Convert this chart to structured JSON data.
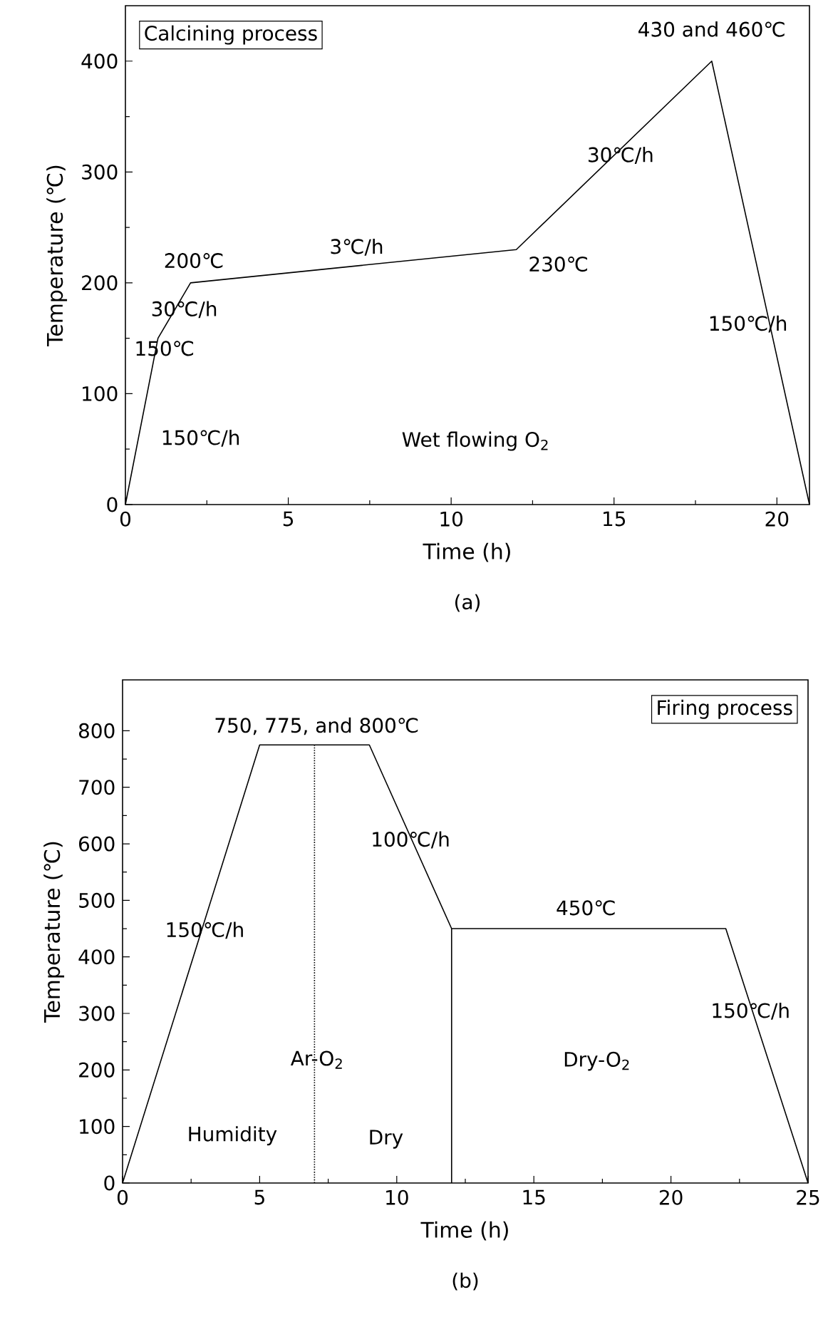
{
  "chart_data": [
    {
      "type": "line",
      "title": "Calcining process",
      "subtitle": "(a)",
      "xlabel": "Time (h)",
      "ylabel": "Temperature (℃)",
      "xlim": [
        0,
        21
      ],
      "ylim": [
        0,
        450
      ],
      "xticks": [
        0,
        5,
        10,
        15,
        20
      ],
      "yticks": [
        0,
        100,
        200,
        300,
        400
      ],
      "series": [
        {
          "color": "#000000",
          "x": [
            0,
            1,
            2,
            12,
            18,
            21
          ],
          "values": [
            0,
            150,
            200,
            230,
            400,
            0
          ]
        }
      ],
      "annotations": [
        "430 and 460℃",
        {
          "text": "30℃/h",
          "x": 15.2,
          "y": 315
        },
        "3℃/h",
        "200℃",
        "230℃",
        "30℃/h",
        "150℃",
        "150℃/h",
        "150℃/h",
        "Wet flowing O$_{2}$"
      ]
    },
    {
      "type": "line",
      "title": "Firing process",
      "subtitle": "(b)",
      "xlabel": "Time (h)",
      "ylabel": "Temperature (℃)",
      "xlim": [
        0,
        25
      ],
      "ylim": [
        0,
        890
      ],
      "xticks": [
        0,
        5,
        10,
        15,
        20,
        25
      ],
      "yticks": [
        0,
        100,
        200,
        300,
        400,
        500,
        600,
        700,
        800
      ],
      "series": [
        {
          "color": "#000000",
          "x": [
            0,
            5,
            9,
            12,
            22,
            25
          ],
          "values": [
            0,
            775,
            775,
            450,
            450,
            0
          ]
        },
        {
          "color": "#000000",
          "x": [
            7,
            7
          ],
          "values": [
            0,
            775
          ],
          "line_style": "dotted"
        },
        {
          "color": "#000000",
          "x": [
            12,
            12
          ],
          "values": [
            0,
            450
          ]
        }
      ],
      "annotations": [
        "750, 775, and 800℃",
        {
          "text": "100℃/h",
          "x": 10.5,
          "y": 607
        },
        "450℃",
        {
          "text": "150℃/h",
          "x": 3.0,
          "y": 447
        },
        {
          "text": "150℃/h",
          "x": 22.9,
          "y": 304
        },
        {
          "text": "Ar-O$_{2}$",
          "x": 7.1,
          "y": 218
        },
        "Dry-O$_{2}$",
        "Humidity",
        "Dry"
      ]
    }
  ]
}
